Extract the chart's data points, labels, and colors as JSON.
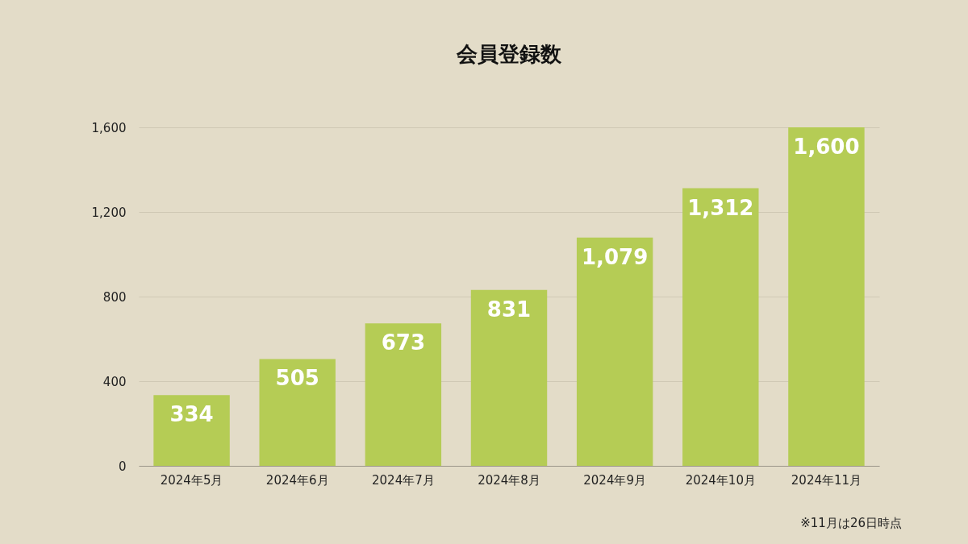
{
  "chart_data": {
    "type": "bar",
    "title": "会員登録数",
    "categories": [
      "2024年5月",
      "2024年6月",
      "2024年7月",
      "2024年8月",
      "2024年9月",
      "2024年10月",
      "2024年11月"
    ],
    "values": [
      334,
      505,
      673,
      831,
      1079,
      1312,
      1600
    ],
    "value_labels": [
      "334",
      "505",
      "673",
      "831",
      "1,079",
      "1,312",
      "1,600"
    ],
    "color": "#b5cc55",
    "ylim": [
      0,
      1600
    ],
    "yticks": [
      0,
      {
        "value": 400,
        "label": "400"
      },
      {
        "value": 800,
        "label": "800"
      },
      {
        "value": 1200,
        "label": "1,200"
      },
      {
        "value": 1600,
        "label": "1,600"
      }
    ],
    "grid": "y",
    "annotations": [
      "※11月は26日時点"
    ]
  }
}
